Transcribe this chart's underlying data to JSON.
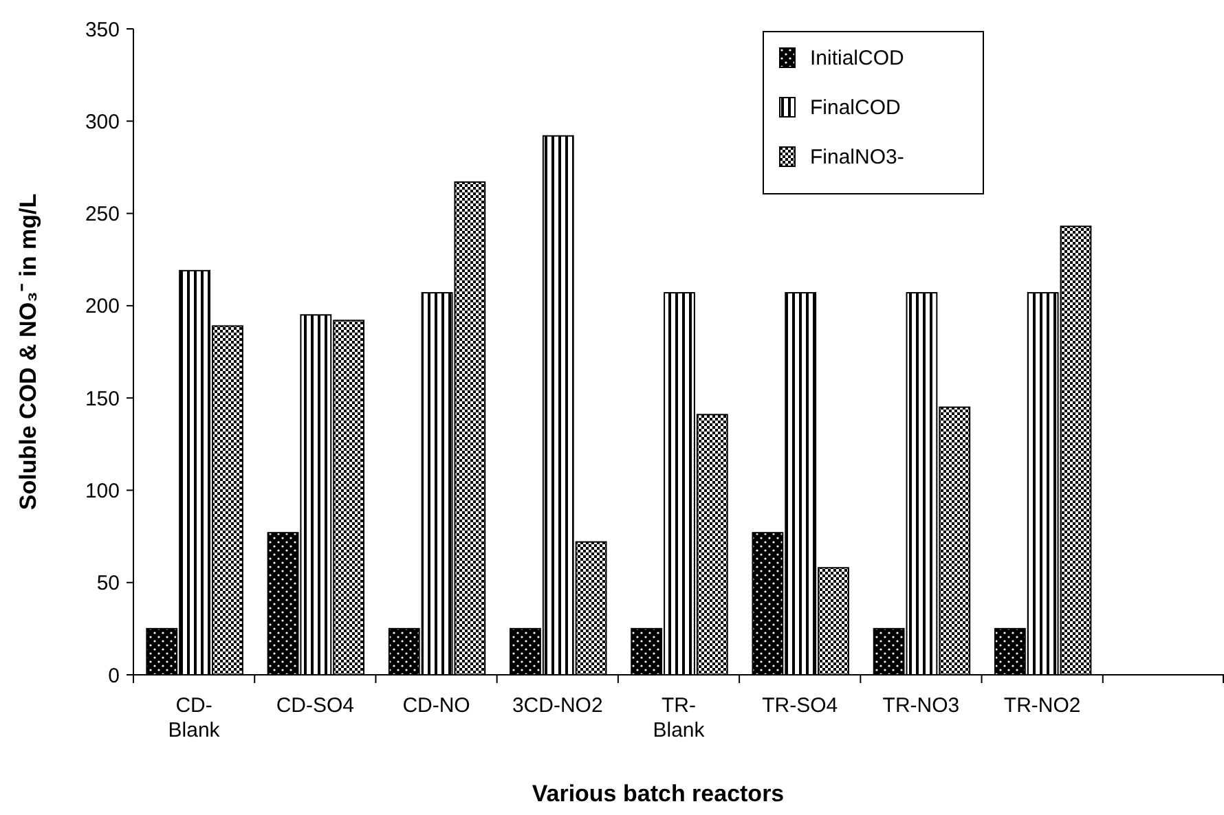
{
  "chart_data": {
    "type": "bar",
    "xlabel": "Various batch reactors",
    "ylabel": "Soluble COD & NO₃⁻ in mg/L",
    "categories": [
      "CD- Blank",
      "CD-SO4",
      "CD-NO",
      "3CD-NO2",
      "TR- Blank",
      "TR-SO4",
      "TR-NO3",
      "TR-NO2",
      null
    ],
    "series": [
      {
        "name": "InitialCOD",
        "color": "#000000",
        "values": [
          25,
          77,
          25,
          25,
          25,
          77,
          25,
          25,
          null
        ]
      },
      {
        "name": "FinalCOD",
        "color": "#000000",
        "values": [
          219,
          195,
          207,
          292,
          207,
          207,
          207,
          207,
          null
        ]
      },
      {
        "name": "FinalNO3-",
        "color": "#000000",
        "values": [
          189,
          192,
          267,
          72,
          141,
          58,
          145,
          243,
          null
        ]
      }
    ],
    "ylim": [
      0,
      350
    ],
    "yticks": [
      0,
      50,
      100,
      150,
      200,
      250,
      300,
      350
    ],
    "grid": false,
    "legend": "top right"
  }
}
